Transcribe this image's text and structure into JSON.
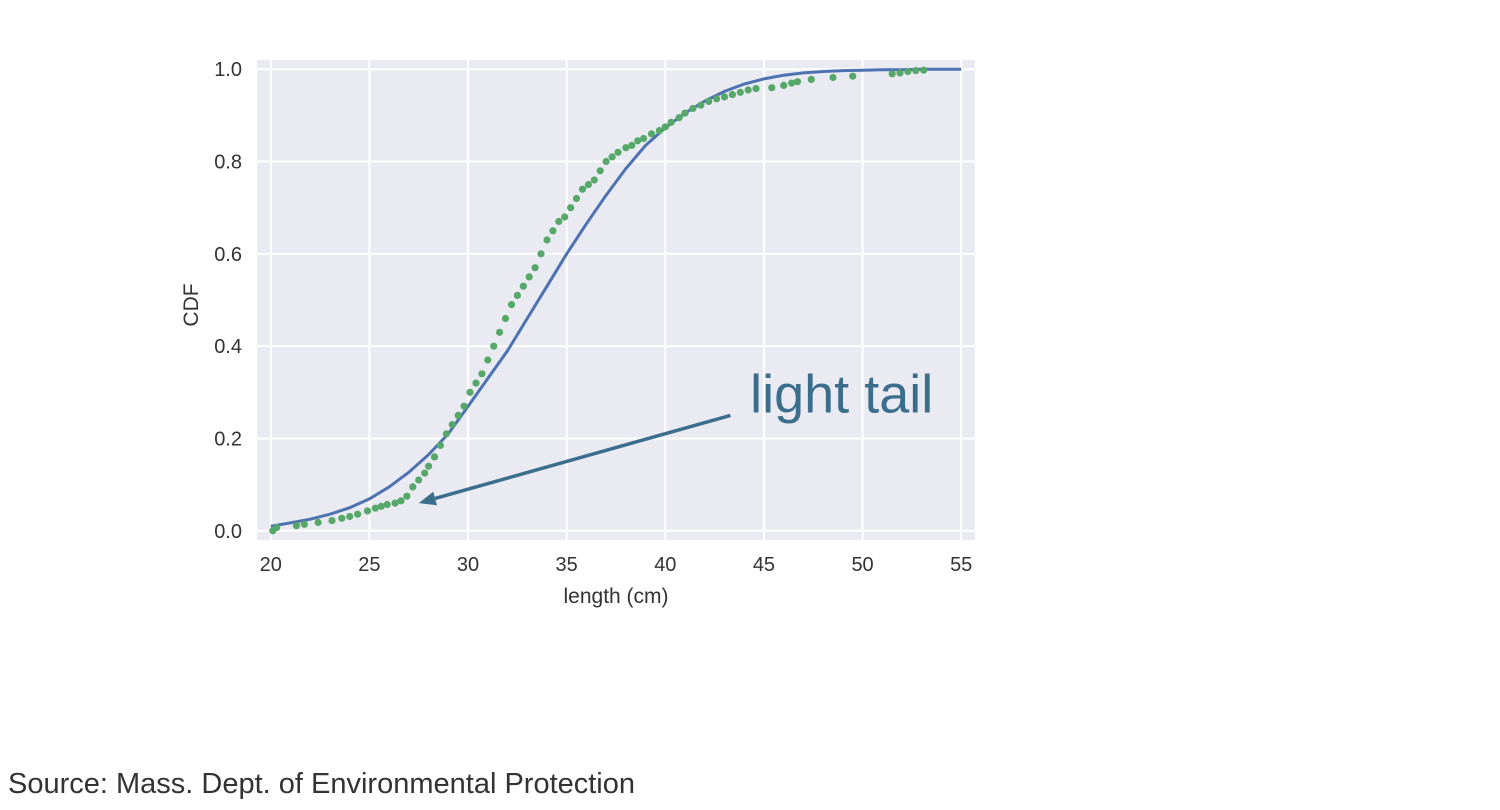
{
  "chart_data": {
    "type": "line",
    "xlabel": "length (cm)",
    "ylabel": "CDF",
    "xlim": [
      19.3,
      55.7
    ],
    "ylim": [
      -0.02,
      1.02
    ],
    "xticks": [
      "20",
      "25",
      "30",
      "35",
      "40",
      "45",
      "50",
      "55"
    ],
    "yticks": [
      "0.0",
      "0.2",
      "0.4",
      "0.6",
      "0.8",
      "1.0"
    ],
    "grid": true,
    "series": [
      {
        "style": "line",
        "color": "#4c72b0",
        "x": [
          20,
          21,
          22,
          23,
          24,
          25,
          26,
          27,
          28,
          29,
          30,
          31,
          32,
          33,
          34,
          35,
          36,
          37,
          38,
          39,
          40,
          41,
          42,
          43,
          44,
          45,
          46,
          47,
          48,
          49,
          50,
          51,
          52,
          53,
          54,
          55
        ],
        "y": [
          0.01,
          0.017,
          0.025,
          0.036,
          0.05,
          0.069,
          0.095,
          0.127,
          0.165,
          0.21,
          0.27,
          0.33,
          0.39,
          0.46,
          0.53,
          0.6,
          0.665,
          0.727,
          0.785,
          0.835,
          0.873,
          0.905,
          0.931,
          0.952,
          0.968,
          0.979,
          0.987,
          0.992,
          0.995,
          0.997,
          0.998,
          0.999,
          0.999,
          1.0,
          1.0,
          1.0
        ]
      },
      {
        "style": "points",
        "color": "#55a868",
        "x": [
          20.1,
          20.3,
          21.3,
          21.7,
          22.4,
          23.1,
          23.6,
          24.0,
          24.4,
          24.9,
          25.3,
          25.6,
          25.9,
          26.3,
          26.6,
          26.9,
          27.2,
          27.5,
          27.8,
          28.0,
          28.3,
          28.6,
          28.9,
          29.2,
          29.5,
          29.8,
          30.1,
          30.4,
          30.7,
          31.0,
          31.3,
          31.6,
          31.9,
          32.2,
          32.5,
          32.8,
          33.1,
          33.4,
          33.7,
          34.0,
          34.3,
          34.6,
          34.9,
          35.2,
          35.5,
          35.8,
          36.1,
          36.4,
          36.7,
          37.0,
          37.3,
          37.6,
          38.0,
          38.3,
          38.6,
          38.9,
          39.3,
          39.7,
          40.0,
          40.3,
          40.7,
          41.0,
          41.4,
          41.8,
          42.2,
          42.6,
          43.0,
          43.4,
          43.8,
          44.2,
          44.6,
          45.4,
          46.0,
          46.4,
          46.7,
          47.4,
          48.5,
          49.5,
          51.5,
          51.9,
          52.3,
          52.7,
          53.1
        ],
        "y": [
          0.0,
          0.007,
          0.011,
          0.014,
          0.018,
          0.022,
          0.027,
          0.031,
          0.036,
          0.043,
          0.049,
          0.053,
          0.057,
          0.06,
          0.065,
          0.075,
          0.095,
          0.11,
          0.125,
          0.14,
          0.16,
          0.185,
          0.21,
          0.23,
          0.25,
          0.27,
          0.3,
          0.32,
          0.34,
          0.37,
          0.4,
          0.43,
          0.46,
          0.49,
          0.51,
          0.53,
          0.55,
          0.57,
          0.6,
          0.63,
          0.65,
          0.67,
          0.68,
          0.7,
          0.72,
          0.74,
          0.75,
          0.76,
          0.78,
          0.8,
          0.81,
          0.82,
          0.83,
          0.835,
          0.845,
          0.85,
          0.86,
          0.867,
          0.875,
          0.885,
          0.895,
          0.905,
          0.915,
          0.922,
          0.93,
          0.936,
          0.94,
          0.945,
          0.95,
          0.955,
          0.958,
          0.96,
          0.965,
          0.97,
          0.973,
          0.978,
          0.982,
          0.985,
          0.99,
          0.992,
          0.995,
          0.997,
          0.998
        ]
      }
    ],
    "annotation": {
      "text": "light tail",
      "text_x": 44.3,
      "text_y": 0.3,
      "arrow_from": [
        43.3,
        0.25
      ],
      "arrow_to": [
        27.5,
        0.06
      ],
      "color": "#3b6e8c"
    }
  },
  "source": "Source: Mass. Dept. of Environmental Protection"
}
